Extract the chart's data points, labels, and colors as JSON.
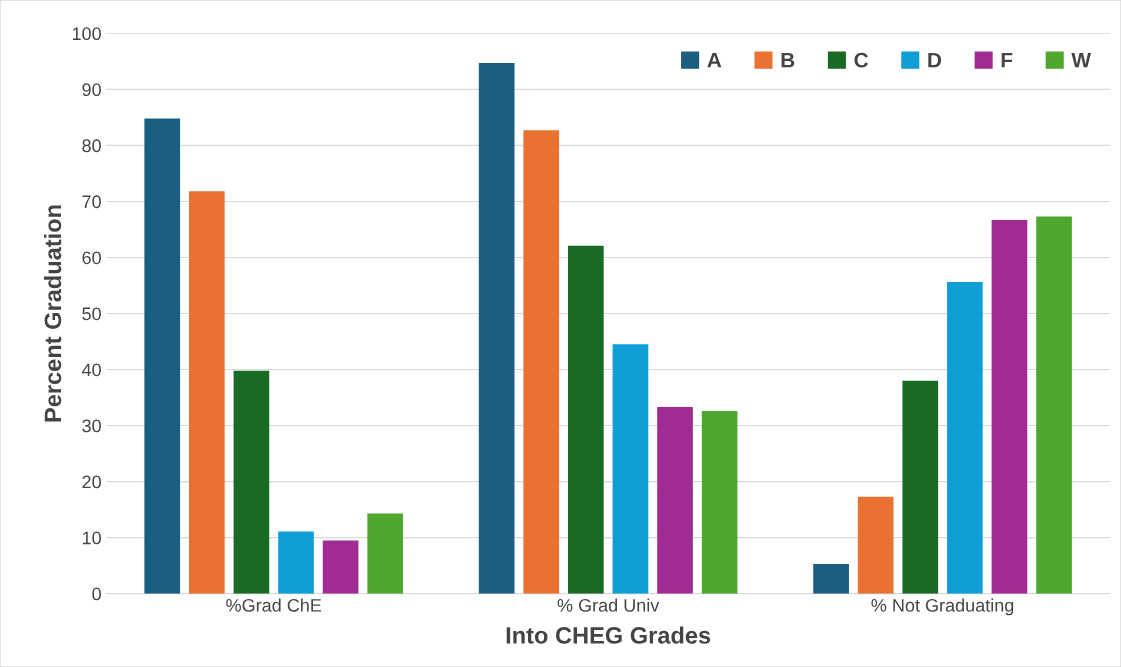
{
  "chart_data": {
    "type": "bar",
    "xlabel": "Into CHEG Grades",
    "ylabel": "Percent Graduation",
    "categories": [
      "%Grad ChE",
      "% Grad Univ",
      "% Not Graduating"
    ],
    "series": [
      {
        "name": "A",
        "color": "#1a5e80",
        "values": [
          84.8,
          94.7,
          5.3
        ]
      },
      {
        "name": "B",
        "color": "#e97132",
        "values": [
          71.8,
          82.7,
          17.3
        ]
      },
      {
        "name": "C",
        "color": "#196b24",
        "values": [
          39.8,
          62.1,
          38.0
        ]
      },
      {
        "name": "D",
        "color": "#0f9ed5",
        "values": [
          11.1,
          44.5,
          55.6
        ]
      },
      {
        "name": "F",
        "color": "#a02b93",
        "values": [
          9.5,
          33.3,
          66.7
        ]
      },
      {
        "name": "W",
        "color": "#4ea72e",
        "values": [
          14.3,
          32.6,
          67.3
        ]
      }
    ],
    "ylim": [
      0,
      100
    ],
    "yticks": [
      0,
      10,
      20,
      30,
      40,
      50,
      60,
      70,
      80,
      90,
      100
    ],
    "grid": "y",
    "legend": "top right"
  }
}
